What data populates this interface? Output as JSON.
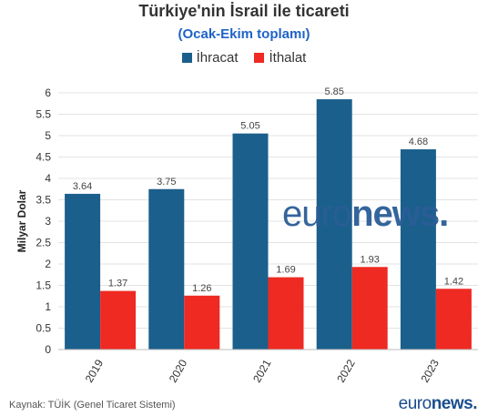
{
  "chart_data": {
    "type": "bar",
    "title": "Türkiye'nin İsrail ile ticareti",
    "subtitle": "(Ocak-Ekim toplamı)",
    "ylabel": "Milyar Dolar",
    "xlabel": "",
    "categories": [
      "2019",
      "2020",
      "2021",
      "2022",
      "2023"
    ],
    "series": [
      {
        "name": "İhracat",
        "color": "#1b5f8c",
        "values": [
          3.64,
          3.75,
          5.05,
          5.85,
          4.68
        ]
      },
      {
        "name": "İthalat",
        "color": "#ee2a22",
        "values": [
          1.37,
          1.26,
          1.69,
          1.93,
          1.42
        ]
      }
    ],
    "ylim": [
      0,
      6
    ],
    "yticks": [
      "0",
      "0.5",
      "1",
      "1.5",
      "2",
      "2.5",
      "3",
      "3.5",
      "4",
      "4.5",
      "5",
      "5.5",
      "6"
    ],
    "grid": true,
    "legend": "top-center"
  },
  "source": "Kaynak: TÜİK (Genel Ticaret Sistemi)",
  "brand": {
    "part1": "euro",
    "part2": "news."
  },
  "watermark": {
    "part1": "euro",
    "part2": "news."
  }
}
